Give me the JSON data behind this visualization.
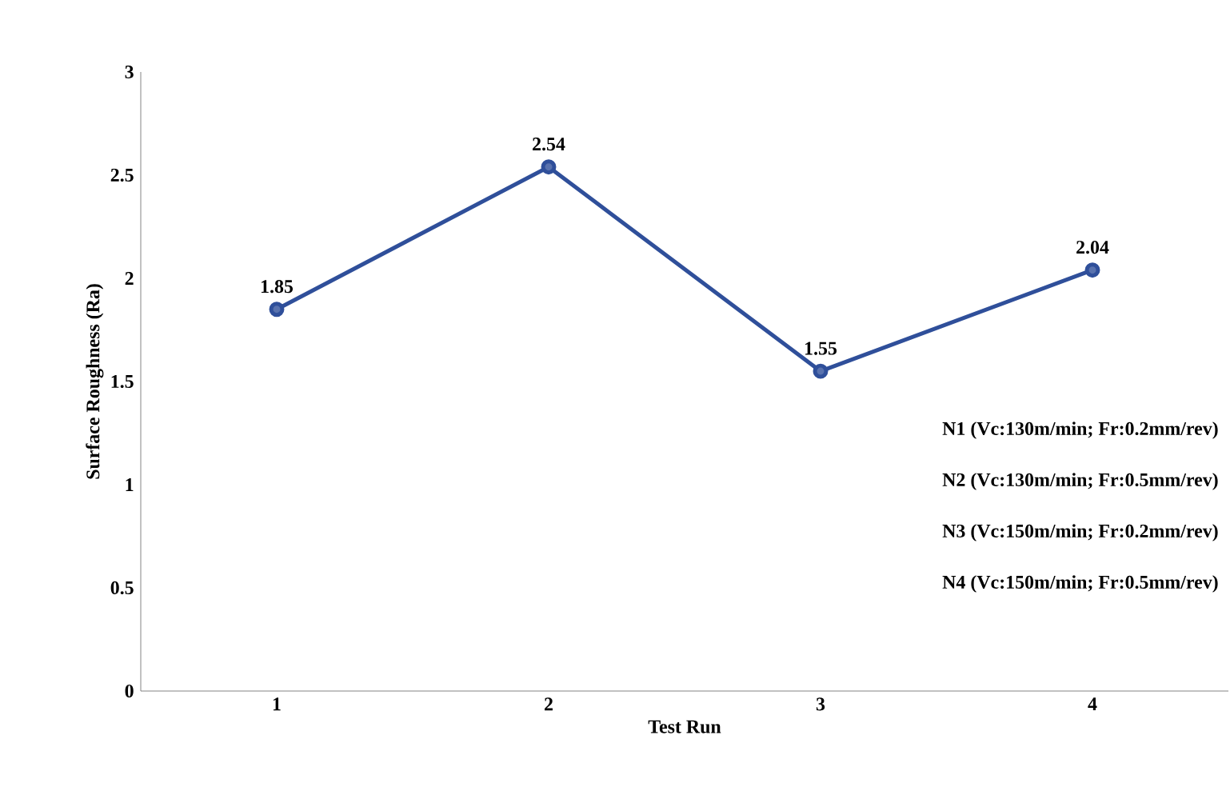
{
  "chart_data": {
    "type": "line",
    "xlabel": "Test Run",
    "ylabel": "Surface Roughness (Ra)",
    "categories": [
      "1",
      "2",
      "3",
      "4"
    ],
    "values": [
      1.85,
      2.54,
      1.55,
      2.04
    ],
    "color": "#2f4f9a",
    "marker": "circle",
    "line_style": "solid",
    "data_labels": true,
    "grid": false,
    "ylim": [
      0,
      3
    ],
    "yticks": [
      0,
      0.5,
      1,
      1.5,
      2,
      2.5,
      3
    ],
    "annotations": [
      "N1 (Vc:130m/min; Fr:0.2mm/rev)",
      "N2 (Vc:130m/min; Fr:0.5mm/rev)",
      "N3 (Vc:150m/min; Fr:0.2mm/rev)",
      "N4 (Vc:150m/min; Fr:0.5mm/rev)"
    ]
  }
}
